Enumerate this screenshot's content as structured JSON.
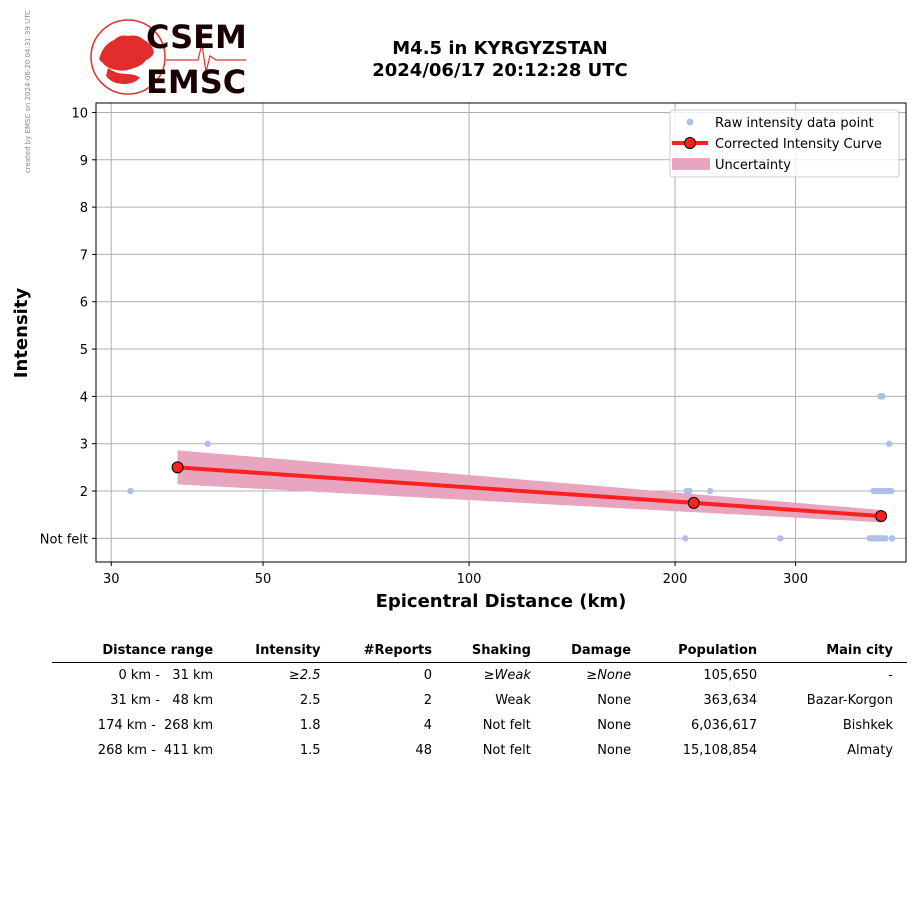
{
  "watermark": "created by EMSC on 2024-06-20 04:31:39 UTC",
  "logo": {
    "line1": "CSEM",
    "line2": "EMSC"
  },
  "title": {
    "line1": "M4.5 in KYRGYZSTAN",
    "line2": "2024/06/17 20:12:28 UTC"
  },
  "chart_data": {
    "type": "scatter",
    "xlabel": "Epicentral Distance (km)",
    "ylabel": "Intensity",
    "x_scale": "log",
    "xlim": [
      28.5,
      435
    ],
    "ylim": [
      0.5,
      10.2
    ],
    "x_ticks": [
      30,
      50,
      100,
      200,
      300
    ],
    "y_ticks": [
      {
        "value": 1,
        "label": "Not felt"
      },
      {
        "value": 2,
        "label": "2"
      },
      {
        "value": 3,
        "label": "3"
      },
      {
        "value": 4,
        "label": "4"
      },
      {
        "value": 5,
        "label": "5"
      },
      {
        "value": 6,
        "label": "6"
      },
      {
        "value": 7,
        "label": "7"
      },
      {
        "value": 8,
        "label": "8"
      },
      {
        "value": 9,
        "label": "9"
      },
      {
        "value": 10,
        "label": "10"
      }
    ],
    "grid": true,
    "legend_position": "top-right",
    "legend": {
      "raw": "Raw intensity data point",
      "curve": "Corrected Intensity Curve",
      "uncertainty": "Uncertainty"
    },
    "colors": {
      "raw": "#aebfea",
      "curve": "#ff2020",
      "marker_edge": "#000000",
      "uncertainty": "#e8a5c0",
      "grid": "#b0b0b0"
    },
    "raw_points": [
      {
        "x": 32,
        "y": 2
      },
      {
        "x": 41.5,
        "y": 3
      },
      {
        "x": 207,
        "y": 1
      },
      {
        "x": 208,
        "y": 2
      },
      {
        "x": 210,
        "y": 2
      },
      {
        "x": 225,
        "y": 2
      },
      {
        "x": 285,
        "y": 1
      },
      {
        "x": 385,
        "y": 1
      },
      {
        "x": 388,
        "y": 1
      },
      {
        "x": 391,
        "y": 1
      },
      {
        "x": 394,
        "y": 1
      },
      {
        "x": 397,
        "y": 1
      },
      {
        "x": 400,
        "y": 1
      },
      {
        "x": 403,
        "y": 1
      },
      {
        "x": 406,
        "y": 1
      },
      {
        "x": 415,
        "y": 1
      },
      {
        "x": 390,
        "y": 2
      },
      {
        "x": 394,
        "y": 2
      },
      {
        "x": 398,
        "y": 2
      },
      {
        "x": 402,
        "y": 2
      },
      {
        "x": 406,
        "y": 2
      },
      {
        "x": 410,
        "y": 2
      },
      {
        "x": 414,
        "y": 2
      },
      {
        "x": 411,
        "y": 3
      },
      {
        "x": 399,
        "y": 4
      },
      {
        "x": 402,
        "y": 4
      }
    ],
    "curve": [
      {
        "x": 37.5,
        "y": 2.5
      },
      {
        "x": 213,
        "y": 1.75
      },
      {
        "x": 400,
        "y": 1.47
      }
    ],
    "uncertainty": {
      "upper": [
        {
          "x": 37.5,
          "y": 2.86
        },
        {
          "x": 400,
          "y": 1.6
        }
      ],
      "lower": [
        {
          "x": 37.5,
          "y": 2.14
        },
        {
          "x": 400,
          "y": 1.34
        }
      ]
    }
  },
  "table": {
    "headers": [
      "Distance range",
      "Intensity",
      "#Reports",
      "Shaking",
      "Damage",
      "Population",
      "Main city"
    ],
    "rows": [
      {
        "range": "0 km -   31 km",
        "intensity": "≥2.5",
        "reports": "0",
        "shaking": "≥Weak",
        "damage": "≥None",
        "population": "105,650",
        "city": "-",
        "italic": true
      },
      {
        "range": "31 km -   48 km",
        "intensity": "2.5",
        "reports": "2",
        "shaking": "Weak",
        "damage": "None",
        "population": "363,634",
        "city": "Bazar-Korgon",
        "italic": false
      },
      {
        "range": "174 km -  268 km",
        "intensity": "1.8",
        "reports": "4",
        "shaking": "Not felt",
        "damage": "None",
        "population": "6,036,617",
        "city": "Bishkek",
        "italic": false
      },
      {
        "range": "268 km -  411 km",
        "intensity": "1.5",
        "reports": "48",
        "shaking": "Not felt",
        "damage": "None",
        "population": "15,108,854",
        "city": "Almaty",
        "italic": false
      }
    ]
  }
}
